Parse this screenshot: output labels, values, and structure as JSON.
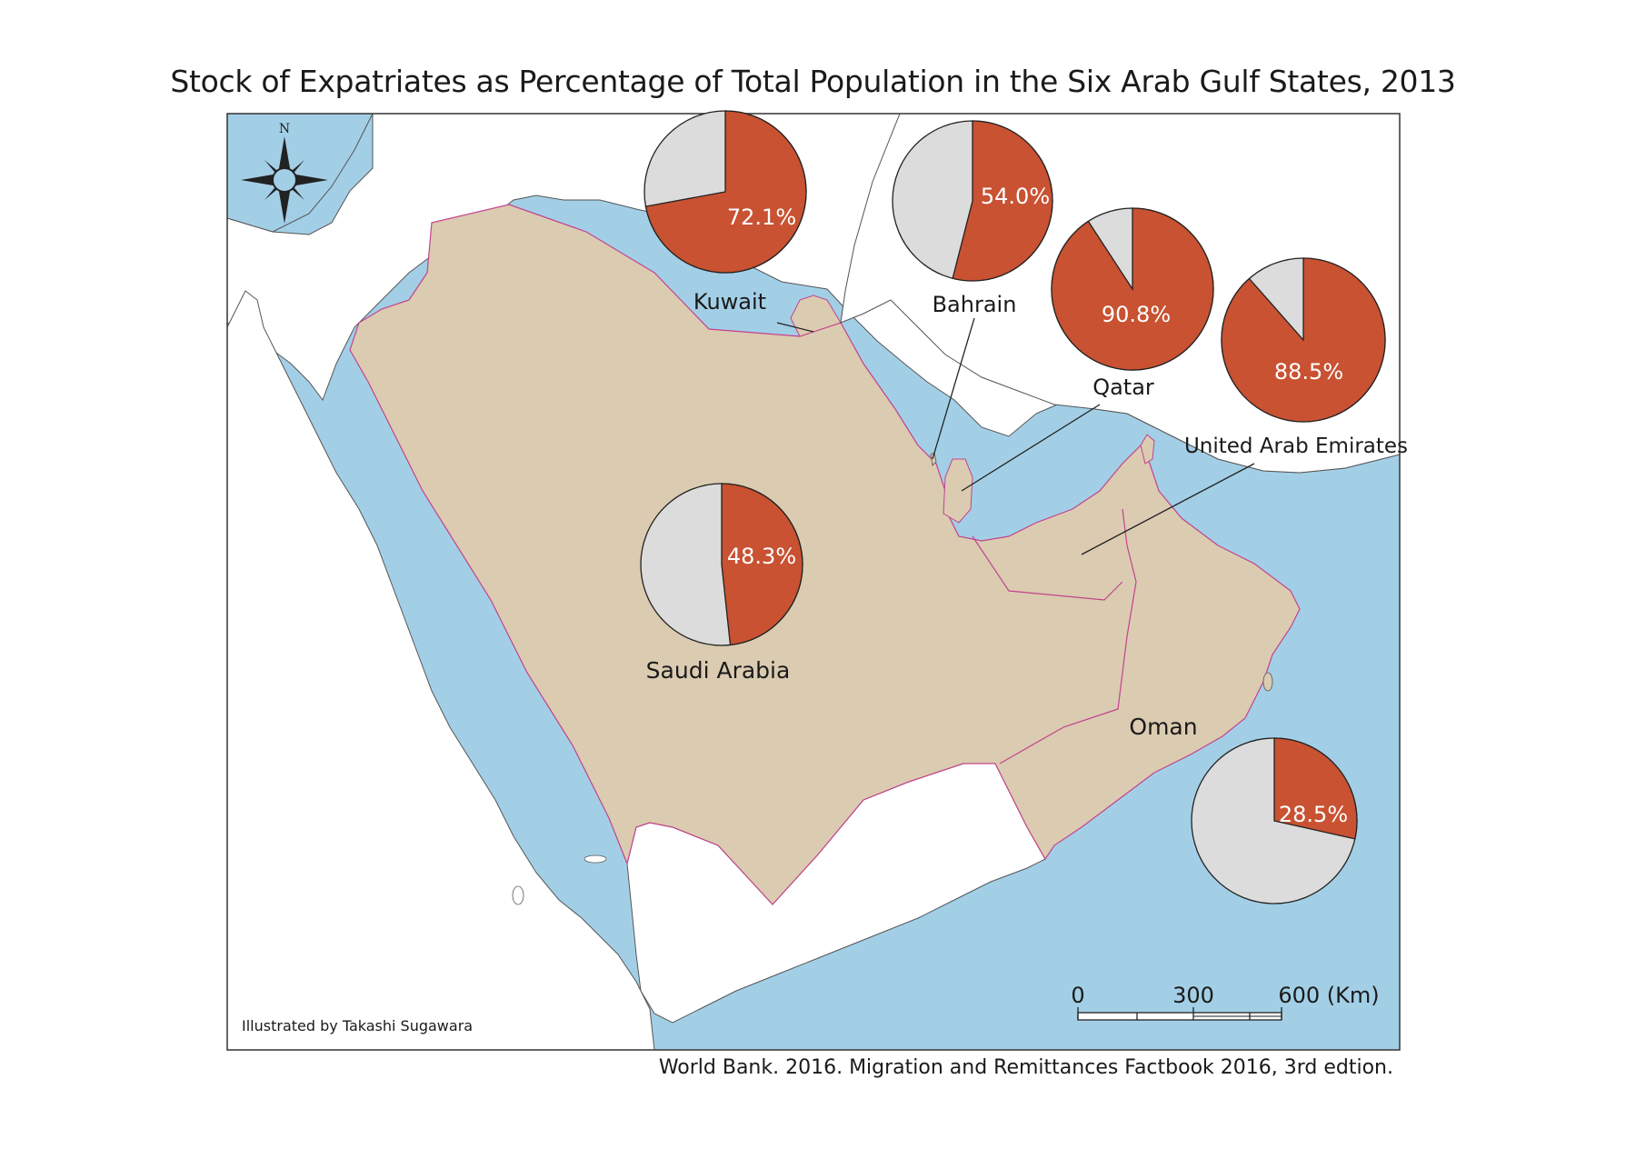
{
  "title": "Stock of Expatriates as Percentage of Total Population in the Six Arab Gulf States, 2013",
  "source": "World Bank. 2016. Migration and Remittances Factbook 2016, 3rd edtion.",
  "credit": "Illustrated by Takashi Sugawara",
  "compass_label": "N",
  "scale": {
    "ticks": [
      "0",
      "300",
      "600 (Km)"
    ]
  },
  "colors": {
    "sea": "#a3cfe6",
    "land_gulf": "#dbcbb1",
    "land_other": "#ffffff",
    "expat": "#c85232",
    "native": "#dcdcdc",
    "border": "#c2438e"
  },
  "countries": [
    {
      "name": "Kuwait",
      "expat_pct": 72.1,
      "pct_label": "72.1%"
    },
    {
      "name": "Bahrain",
      "expat_pct": 54.0,
      "pct_label": "54.0%"
    },
    {
      "name": "Qatar",
      "expat_pct": 90.8,
      "pct_label": "90.8%"
    },
    {
      "name": "United Arab Emirates",
      "expat_pct": 88.5,
      "pct_label": "88.5%"
    },
    {
      "name": "Saudi Arabia",
      "expat_pct": 48.3,
      "pct_label": "48.3%"
    },
    {
      "name": "Oman",
      "expat_pct": 28.5,
      "pct_label": "28.5%"
    }
  ]
}
